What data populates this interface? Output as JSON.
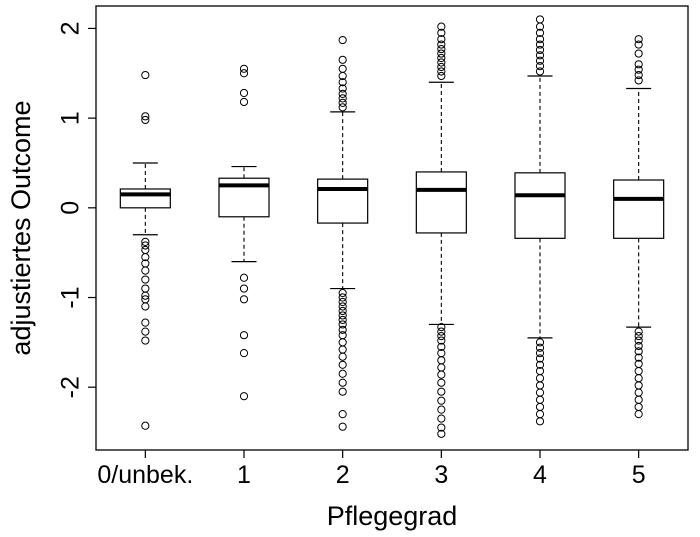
{
  "chart_data": {
    "type": "boxplot",
    "xlabel": "Pflegegrad",
    "ylabel": "adjustiertes Outcome",
    "ylim": [
      -2.7,
      2.25
    ],
    "yticks": [
      -2,
      -1,
      0,
      1,
      2
    ],
    "ytick_labels": [
      "-2",
      "-1",
      "0",
      "1",
      "2"
    ],
    "categories": [
      "0/unbek.",
      "1",
      "2",
      "3",
      "4",
      "5"
    ],
    "grid": false,
    "legend": "none",
    "boxes": [
      {
        "category": "0/unbek.",
        "whisker_low": -0.3,
        "q1": 0.0,
        "median": 0.15,
        "q3": 0.21,
        "whisker_high": 0.5,
        "outliers": [
          1.48,
          1.02,
          0.98,
          -0.38,
          -0.42,
          -0.47,
          -0.55,
          -0.62,
          -0.7,
          -0.8,
          -0.9,
          -0.98,
          -1.02,
          -1.1,
          -1.28,
          -1.38,
          -1.48,
          -2.43
        ]
      },
      {
        "category": "1",
        "whisker_low": -0.6,
        "q1": -0.1,
        "median": 0.25,
        "q3": 0.33,
        "whisker_high": 0.46,
        "outliers": [
          1.55,
          1.5,
          1.28,
          1.18,
          -0.78,
          -0.9,
          -1.02,
          -1.42,
          -1.62,
          -2.1
        ]
      },
      {
        "category": "2",
        "whisker_low": -0.9,
        "q1": -0.17,
        "median": 0.21,
        "q3": 0.32,
        "whisker_high": 1.07,
        "outliers": [
          1.87,
          1.65,
          1.55,
          1.47,
          1.4,
          1.33,
          1.27,
          1.22,
          1.17,
          1.12,
          -0.95,
          -1.0,
          -1.05,
          -1.1,
          -1.15,
          -1.2,
          -1.25,
          -1.3,
          -1.36,
          -1.42,
          -1.5,
          -1.58,
          -1.66,
          -1.75,
          -1.85,
          -1.95,
          -2.05,
          -2.3,
          -2.44
        ]
      },
      {
        "category": "3",
        "whisker_low": -1.3,
        "q1": -0.28,
        "median": 0.2,
        "q3": 0.4,
        "whisker_high": 1.4,
        "outliers": [
          2.02,
          1.95,
          1.88,
          1.82,
          1.77,
          1.72,
          1.67,
          1.62,
          1.57,
          1.52,
          1.47,
          -1.33,
          -1.38,
          -1.43,
          -1.48,
          -1.55,
          -1.62,
          -1.7,
          -1.78,
          -1.86,
          -1.95,
          -2.05,
          -2.15,
          -2.25,
          -2.35,
          -2.45,
          -2.52
        ]
      },
      {
        "category": "4",
        "whisker_low": -1.45,
        "q1": -0.34,
        "median": 0.14,
        "q3": 0.39,
        "whisker_high": 1.47,
        "outliers": [
          2.1,
          2.02,
          1.95,
          1.88,
          1.82,
          1.76,
          1.7,
          1.64,
          1.58,
          1.52,
          -1.5,
          -1.56,
          -1.62,
          -1.68,
          -1.75,
          -1.82,
          -1.9,
          -1.98,
          -2.06,
          -2.14,
          -2.22,
          -2.3,
          -2.38
        ]
      },
      {
        "category": "5",
        "whisker_low": -1.33,
        "q1": -0.34,
        "median": 0.1,
        "q3": 0.31,
        "whisker_high": 1.33,
        "outliers": [
          1.88,
          1.82,
          1.72,
          1.6,
          1.54,
          1.48,
          1.42,
          -1.38,
          -1.43,
          -1.48,
          -1.54,
          -1.6,
          -1.67,
          -1.74,
          -1.82,
          -1.9,
          -1.98,
          -2.06,
          -2.14,
          -2.22,
          -2.3
        ]
      }
    ]
  }
}
